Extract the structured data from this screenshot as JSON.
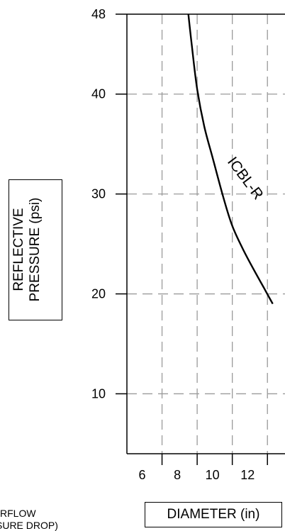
{
  "chart_data": {
    "type": "line",
    "ylabel_lines": [
      "REFLECTIVE",
      "PRESSURE (psi)"
    ],
    "xlabel": "DIAMETER (in)",
    "xlim": [
      4,
      13
    ],
    "ylim": [
      4,
      48
    ],
    "x_ticks": [
      6,
      8,
      10,
      12
    ],
    "y_ticks": [
      10,
      20,
      30,
      40,
      48
    ],
    "grid": true,
    "series": [
      {
        "name": "ICBL-R",
        "points": [
          {
            "x": 7.5,
            "y": 48
          },
          {
            "x": 7.7,
            "y": 44.8
          },
          {
            "x": 8.0,
            "y": 40.5
          },
          {
            "x": 8.4,
            "y": 36.8
          },
          {
            "x": 8.9,
            "y": 33.5
          },
          {
            "x": 9.5,
            "y": 29.6
          },
          {
            "x": 10.0,
            "y": 26.8
          },
          {
            "x": 10.6,
            "y": 24.5
          },
          {
            "x": 11.2,
            "y": 22.5
          },
          {
            "x": 11.8,
            "y": 20.6
          },
          {
            "x": 12.3,
            "y": 19.0
          }
        ]
      }
    ],
    "annotations": [
      "ICBL-R"
    ]
  },
  "footnote_lines": [
    "RFLOW",
    "SURE DROP)"
  ]
}
